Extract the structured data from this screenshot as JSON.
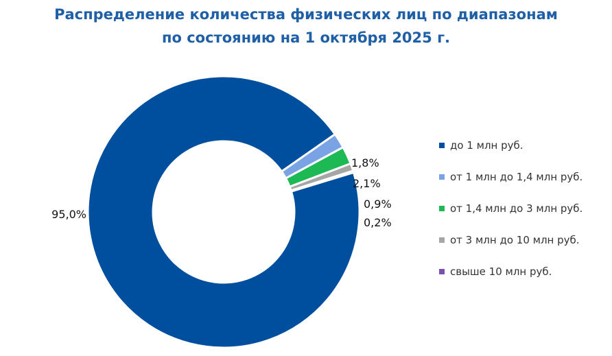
{
  "title": {
    "line1": "Распределение количества физических лиц по диапазонам",
    "line2": "по состоянию на 1 октября 2025 г."
  },
  "chart_data": {
    "type": "pie",
    "variant": "donut",
    "title": "Распределение количества физических лиц по диапазонам по состоянию на 1 октября 2025 г.",
    "unit": "%",
    "categories": [
      "до 1 млн руб.",
      "от 1 млн до 1,4 млн руб.",
      "от 1,4 млн до 3 млн руб.",
      "от 3 млн до 10 млн руб.",
      "свыше 10 млн руб."
    ],
    "values": [
      95.0,
      1.8,
      2.1,
      0.9,
      0.2
    ],
    "data_labels": [
      "95,0%",
      "1,8%",
      "2,1%",
      "0,9%",
      "0,2%"
    ],
    "colors": [
      "#004f9e",
      "#7aa3e5",
      "#1db954",
      "#a6a6a6",
      "#7b52ab"
    ],
    "legend_position": "right"
  }
}
